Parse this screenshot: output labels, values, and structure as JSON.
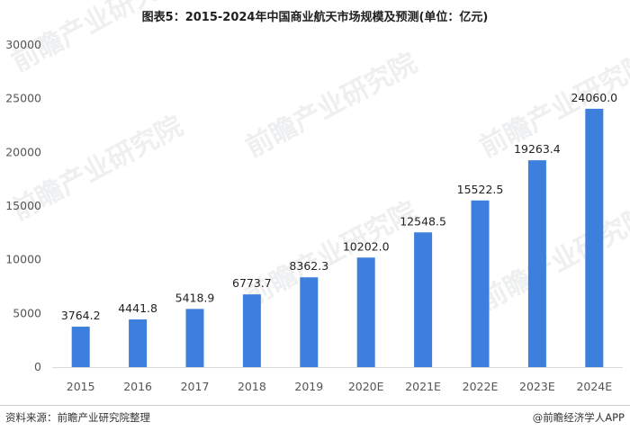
{
  "chart_data": {
    "type": "bar",
    "title": "图表5：2015-2024年中国商业航天市场规模及预测(单位：亿元)",
    "xlabel": "",
    "ylabel": "",
    "categories": [
      "2015",
      "2016",
      "2017",
      "2018",
      "2019",
      "2020E",
      "2021E",
      "2022E",
      "2023E",
      "2024E"
    ],
    "values": [
      3764.2,
      4441.8,
      5418.9,
      6773.7,
      8362.3,
      10202.0,
      12548.5,
      15522.5,
      19263.4,
      24060.0
    ],
    "value_labels": [
      "3764.2",
      "4441.8",
      "5418.9",
      "6773.7",
      "8362.3",
      "10202.0",
      "12548.5",
      "15522.5",
      "19263.4",
      "24060.0"
    ],
    "ylim": [
      0,
      30000
    ],
    "yticks": [
      "0",
      "5000",
      "10000",
      "15000",
      "20000",
      "25000",
      "30000"
    ],
    "grid": false,
    "bar_color": "#3d7fdc"
  },
  "watermark": "前瞻产业研究院",
  "footer": {
    "source": "资料来源：前瞻产业研究院整理",
    "brand": "@前瞻经济学人APP"
  }
}
